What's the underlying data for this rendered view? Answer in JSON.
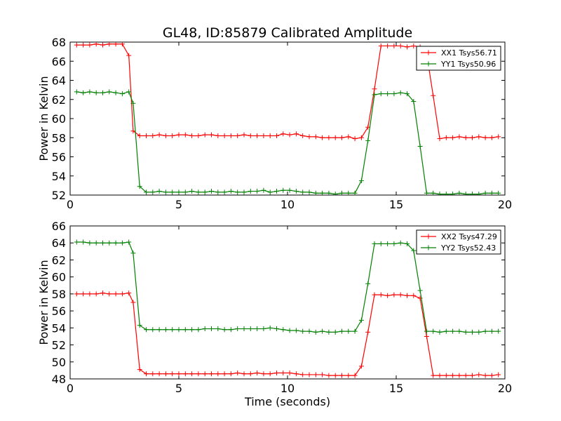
{
  "chart_data": [
    {
      "type": "line",
      "title": "GL48, ID:85879 Calibrated Amplitude",
      "xlabel": "",
      "ylabel": "Power in Kelvin",
      "xlim": [
        0,
        20
      ],
      "ylim": [
        52,
        68
      ],
      "xticks": [
        0,
        5,
        10,
        15,
        20
      ],
      "yticks": [
        52,
        54,
        56,
        58,
        60,
        62,
        64,
        66,
        68
      ],
      "legend_position": "top-right",
      "x": [
        0.3,
        0.6,
        0.9,
        1.2,
        1.5,
        1.8,
        2.1,
        2.4,
        2.7,
        2.9,
        3.2,
        3.5,
        3.8,
        4.1,
        4.4,
        4.7,
        5.0,
        5.3,
        5.6,
        5.9,
        6.2,
        6.5,
        6.8,
        7.1,
        7.4,
        7.7,
        8.0,
        8.3,
        8.6,
        8.9,
        9.2,
        9.5,
        9.8,
        10.1,
        10.4,
        10.7,
        11.0,
        11.3,
        11.6,
        11.9,
        12.2,
        12.5,
        12.8,
        13.1,
        13.4,
        13.7,
        14.0,
        14.3,
        14.6,
        14.9,
        15.2,
        15.5,
        15.8,
        16.1,
        16.4,
        16.7,
        17.0,
        17.3,
        17.6,
        17.9,
        18.2,
        18.5,
        18.8,
        19.1,
        19.4,
        19.7
      ],
      "series": [
        {
          "name": "XX1 Tsys56.71",
          "color": "#ff0000",
          "values": [
            67.7,
            67.7,
            67.7,
            67.8,
            67.7,
            67.8,
            67.8,
            67.8,
            66.6,
            58.7,
            58.2,
            58.2,
            58.2,
            58.3,
            58.2,
            58.2,
            58.3,
            58.3,
            58.2,
            58.2,
            58.3,
            58.3,
            58.2,
            58.2,
            58.2,
            58.2,
            58.3,
            58.2,
            58.2,
            58.2,
            58.2,
            58.2,
            58.4,
            58.3,
            58.4,
            58.2,
            58.1,
            58.1,
            58.0,
            58.0,
            58.0,
            58.0,
            58.1,
            57.9,
            58.0,
            59.1,
            63.1,
            67.6,
            67.6,
            67.6,
            67.6,
            67.5,
            67.6,
            67.5,
            66.8,
            62.4,
            57.9,
            58.0,
            58.0,
            58.1,
            58.0,
            58.0,
            58.1,
            58.0,
            58.0,
            58.1
          ]
        },
        {
          "name": "YY1 Tsys50.96",
          "color": "#008000",
          "values": [
            62.8,
            62.7,
            62.8,
            62.7,
            62.7,
            62.8,
            62.7,
            62.6,
            62.8,
            61.6,
            52.9,
            52.3,
            52.3,
            52.4,
            52.3,
            52.3,
            52.3,
            52.3,
            52.4,
            52.3,
            52.3,
            52.4,
            52.3,
            52.3,
            52.4,
            52.3,
            52.3,
            52.4,
            52.4,
            52.5,
            52.3,
            52.4,
            52.5,
            52.5,
            52.4,
            52.3,
            52.3,
            52.2,
            52.2,
            52.2,
            52.1,
            52.2,
            52.2,
            52.2,
            53.5,
            57.7,
            62.5,
            62.6,
            62.6,
            62.6,
            62.7,
            62.6,
            61.8,
            57.1,
            52.2,
            52.2,
            52.1,
            52.1,
            52.1,
            52.2,
            52.1,
            52.1,
            52.1,
            52.2,
            52.2,
            52.2
          ]
        }
      ]
    },
    {
      "type": "line",
      "title": "",
      "xlabel": "Time (seconds)",
      "ylabel": "Power in Kelvin",
      "xlim": [
        0,
        20
      ],
      "ylim": [
        48,
        66
      ],
      "xticks": [
        0,
        5,
        10,
        15,
        20
      ],
      "yticks": [
        48,
        50,
        52,
        54,
        56,
        58,
        60,
        62,
        64,
        66
      ],
      "legend_position": "top-right",
      "x": [
        0.3,
        0.6,
        0.9,
        1.2,
        1.5,
        1.8,
        2.1,
        2.4,
        2.7,
        2.9,
        3.2,
        3.5,
        3.8,
        4.1,
        4.4,
        4.7,
        5.0,
        5.3,
        5.6,
        5.9,
        6.2,
        6.5,
        6.8,
        7.1,
        7.4,
        7.7,
        8.0,
        8.3,
        8.6,
        8.9,
        9.2,
        9.5,
        9.8,
        10.1,
        10.4,
        10.7,
        11.0,
        11.3,
        11.6,
        11.9,
        12.2,
        12.5,
        12.8,
        13.1,
        13.4,
        13.7,
        14.0,
        14.3,
        14.6,
        14.9,
        15.2,
        15.5,
        15.8,
        16.1,
        16.4,
        16.7,
        17.0,
        17.3,
        17.6,
        17.9,
        18.2,
        18.5,
        18.8,
        19.1,
        19.4,
        19.7
      ],
      "series": [
        {
          "name": "XX2 Tsys47.29",
          "color": "#ff0000",
          "values": [
            58.0,
            58.0,
            58.0,
            58.0,
            58.1,
            58.0,
            58.0,
            58.0,
            58.1,
            57.0,
            49.1,
            48.6,
            48.6,
            48.6,
            48.6,
            48.6,
            48.6,
            48.6,
            48.6,
            48.6,
            48.6,
            48.6,
            48.6,
            48.6,
            48.6,
            48.7,
            48.6,
            48.6,
            48.7,
            48.6,
            48.6,
            48.7,
            48.7,
            48.7,
            48.6,
            48.5,
            48.5,
            48.5,
            48.5,
            48.4,
            48.4,
            48.4,
            48.4,
            48.4,
            49.5,
            53.5,
            57.9,
            57.9,
            57.8,
            57.9,
            57.9,
            57.8,
            57.8,
            57.5,
            53.0,
            48.4,
            48.4,
            48.4,
            48.4,
            48.4,
            48.4,
            48.4,
            48.5,
            48.4,
            48.4,
            48.5
          ],
          "hint": ""
        },
        {
          "name": "YY2 Tsys52.43",
          "color": "#008000",
          "values": [
            64.1,
            64.1,
            64.0,
            64.0,
            64.0,
            64.0,
            64.0,
            64.0,
            64.1,
            62.8,
            54.3,
            53.8,
            53.8,
            53.8,
            53.8,
            53.8,
            53.8,
            53.8,
            53.8,
            53.8,
            53.9,
            53.9,
            53.9,
            53.8,
            53.8,
            53.9,
            53.9,
            53.9,
            53.9,
            53.9,
            54.0,
            53.9,
            53.8,
            53.7,
            53.7,
            53.6,
            53.6,
            53.5,
            53.6,
            53.5,
            53.5,
            53.6,
            53.6,
            53.6,
            54.9,
            59.2,
            63.9,
            63.9,
            63.9,
            63.9,
            64.0,
            63.9,
            63.1,
            58.4,
            53.6,
            53.6,
            53.5,
            53.6,
            53.6,
            53.6,
            53.5,
            53.5,
            53.5,
            53.6,
            53.6,
            53.6
          ]
        }
      ]
    }
  ]
}
